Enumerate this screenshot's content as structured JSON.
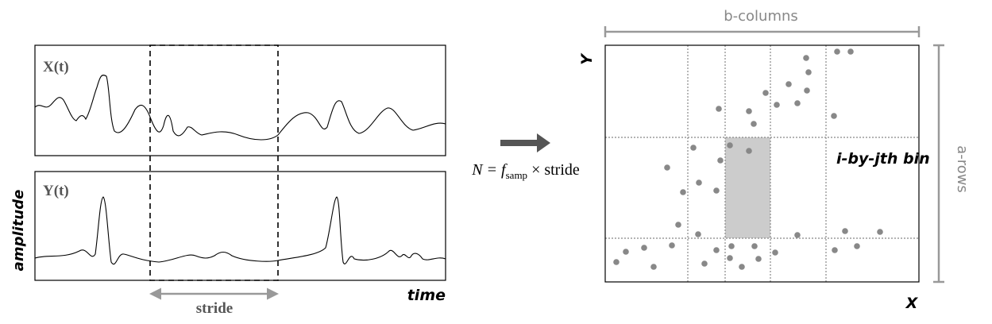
{
  "signals": {
    "top_label": "X(t)",
    "bottom_label": "Y(t)",
    "y_axis_label": "amplitude",
    "x_axis_label": "time",
    "window_label": "stride"
  },
  "formula": {
    "lhs": "N = ",
    "f": "f",
    "sub": "samp",
    "rest": " × stride"
  },
  "grid": {
    "y_label": "Y",
    "x_label": "X",
    "columns_label": "b-columns",
    "rows_label": "a-rows",
    "bin_label": "i-by-jth bin"
  }
}
